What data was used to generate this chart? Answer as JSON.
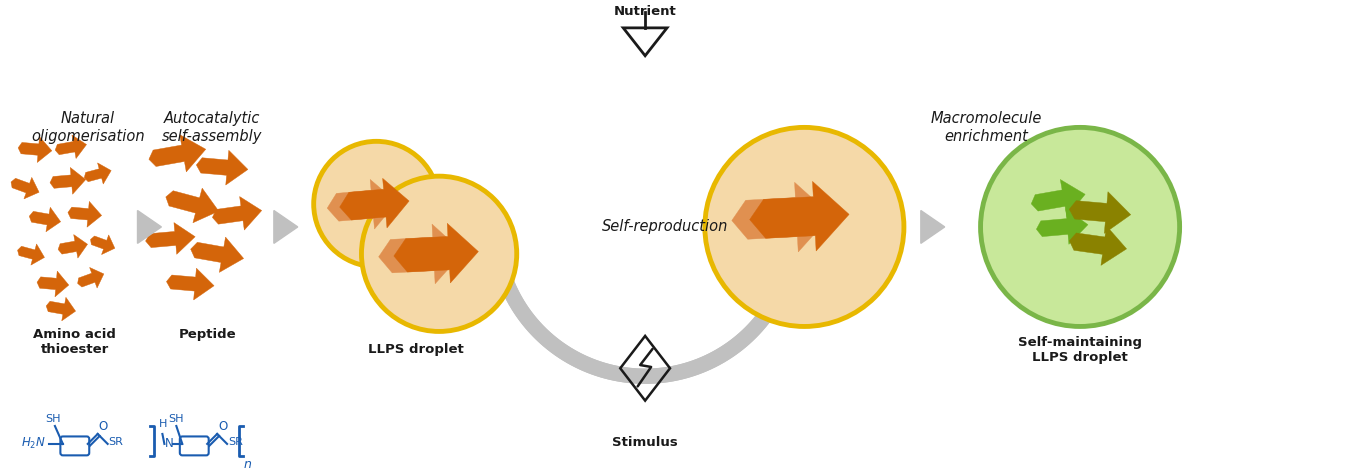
{
  "bg_color": "#ffffff",
  "orange_body": "#d4650a",
  "orange_fill": "#f5d9a8",
  "orange_fill2": "#f8e5ba",
  "yellow_border": "#e8b800",
  "green_border": "#7ab648",
  "green_fill": "#c8e89a",
  "green_shape": "#6ab020",
  "olive_shape": "#8a8200",
  "gray_arrow": "#c0c0c0",
  "gray_tri": "#c0c0c0",
  "black": "#1a1a1a",
  "blue": "#1a5cb0",
  "label1": "Natural\noligomerisation",
  "label2": "Autocatalytic\nself-assembly",
  "label3": "Self-reproduction",
  "label4": "Macromolecule\nenrichment",
  "label5": "LLPS droplet",
  "label6": "Nutrient",
  "label7": "Stimulus",
  "label8": "Self-maintaining\nLLPS droplet",
  "label9": "Amino acid\nthioester",
  "label10": "Peptide"
}
